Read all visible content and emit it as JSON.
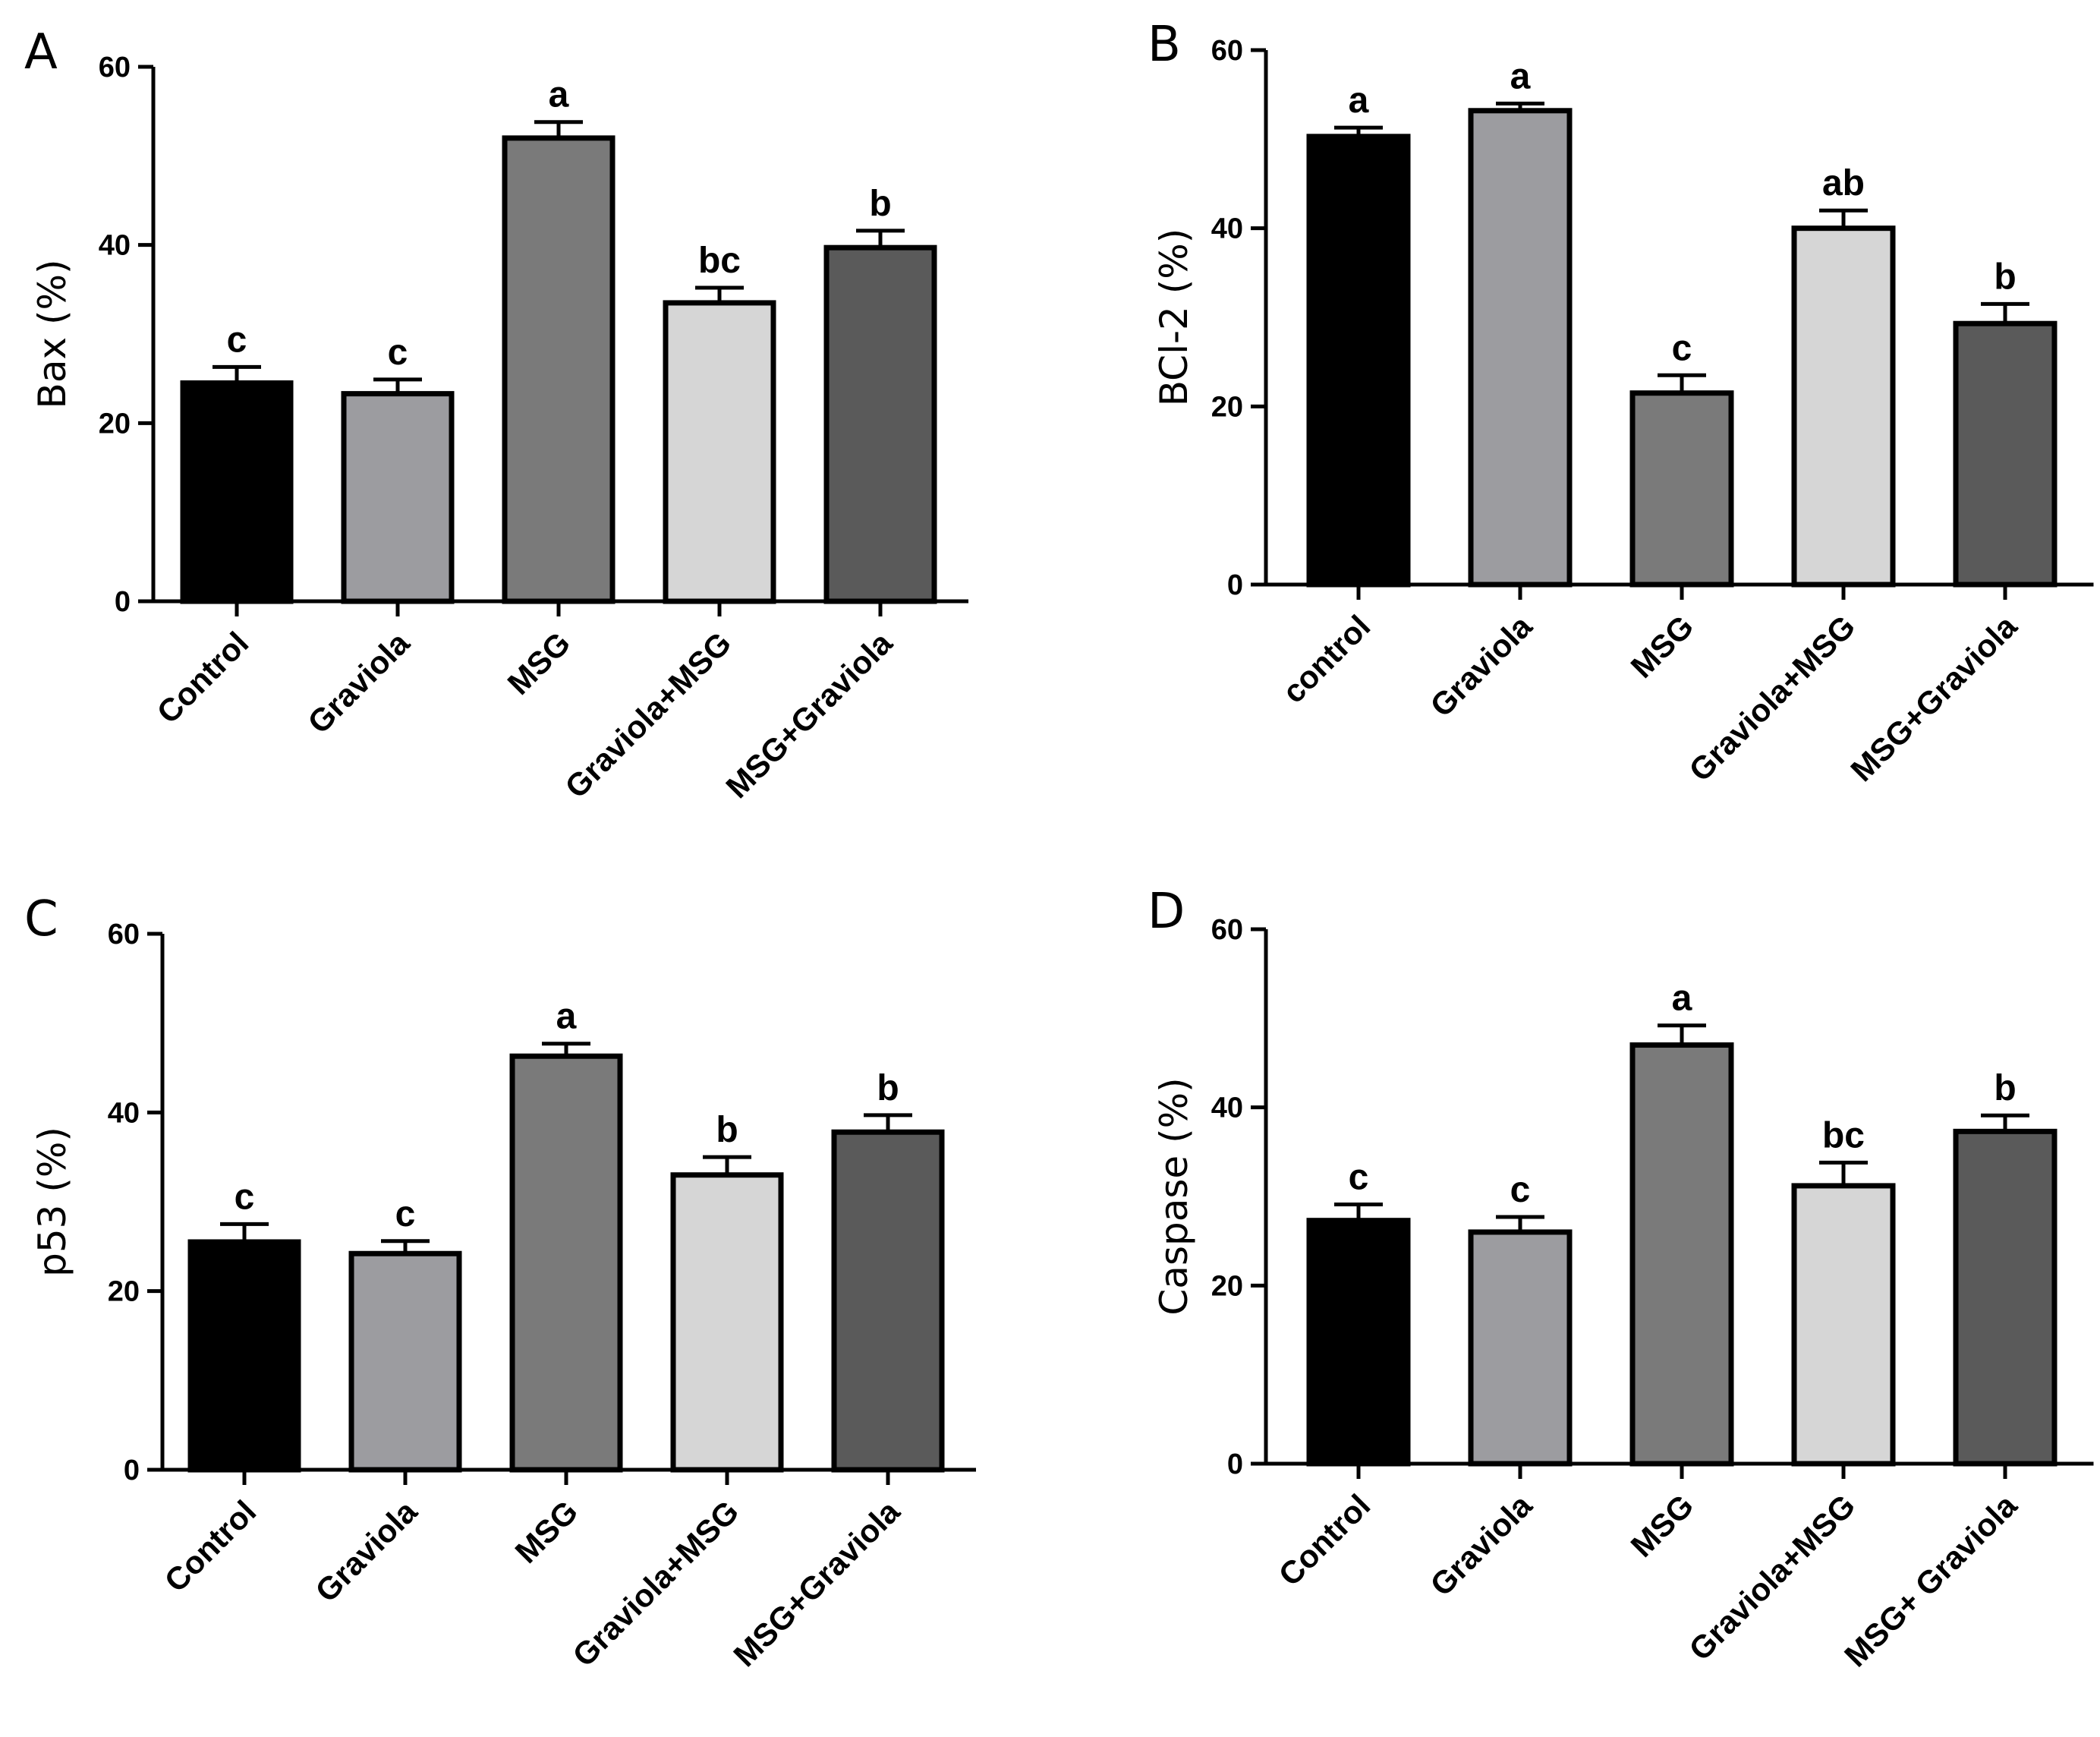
{
  "chart_data": [
    {
      "type": "bar",
      "panel": "A",
      "ylabel": "Bax (%)",
      "ylim": [
        0,
        60
      ],
      "yticks": [
        "0",
        "20",
        "40",
        "60"
      ],
      "categories": [
        "Control",
        "Graviola",
        "MSG",
        "Graviola+MSG",
        "MSG+Graviola"
      ],
      "values": [
        24.5,
        23.3,
        52,
        33.5,
        39.7
      ],
      "errors": [
        1.8,
        1.6,
        1.8,
        1.7,
        1.9
      ],
      "significance": [
        "c",
        "c",
        "a",
        "bc",
        "b"
      ],
      "colors": [
        "#000000",
        "#9c9ca0",
        "#7a7a7a",
        "#d6d6d6",
        "#5a5a5a"
      ]
    },
    {
      "type": "bar",
      "panel": "B",
      "ylabel": "BCl-2 (%)",
      "ylim": [
        0,
        60
      ],
      "yticks": [
        "0",
        "20",
        "40",
        "60"
      ],
      "categories": [
        "control",
        "Graviola",
        "MSG",
        "Graviola+MSG",
        "MSG+Graviola"
      ],
      "values": [
        50.3,
        53.2,
        21.5,
        40,
        29.3
      ],
      "errors": [
        1.0,
        0.8,
        2.0,
        2.0,
        2.2
      ],
      "significance": [
        "a",
        "a",
        "c",
        "ab",
        "b"
      ],
      "colors": [
        "#000000",
        "#9c9ca0",
        "#7a7a7a",
        "#d6d6d6",
        "#5a5a5a"
      ]
    },
    {
      "type": "bar",
      "panel": "C",
      "ylabel": "p53 (%)",
      "ylim": [
        0,
        60
      ],
      "yticks": [
        "0",
        "20",
        "40",
        "60"
      ],
      "categories": [
        "Control",
        "Graviola",
        "MSG",
        "Graviola+MSG",
        "MSG+Graviola"
      ],
      "values": [
        25.5,
        24.2,
        46.3,
        33,
        37.8
      ],
      "errors": [
        2.0,
        1.4,
        1.4,
        2.0,
        1.9
      ],
      "significance": [
        "c",
        "c",
        "a",
        "b",
        "b"
      ],
      "colors": [
        "#000000",
        "#9c9ca0",
        "#7a7a7a",
        "#d6d6d6",
        "#5a5a5a"
      ]
    },
    {
      "type": "bar",
      "panel": "D",
      "ylabel": "Caspase (%)",
      "ylim": [
        0,
        60
      ],
      "yticks": [
        "0",
        "20",
        "40",
        "60"
      ],
      "categories": [
        "Control",
        "Graviola",
        "MSG",
        "Graviola+MSG",
        "MSG+ Graviola"
      ],
      "values": [
        27.3,
        26,
        47,
        31.2,
        37.3
      ],
      "errors": [
        1.8,
        1.7,
        2.2,
        2.6,
        1.8
      ],
      "significance": [
        "c",
        "c",
        "a",
        "bc",
        "b"
      ],
      "colors": [
        "#000000",
        "#9c9ca0",
        "#7a7a7a",
        "#d6d6d6",
        "#5a5a5a"
      ]
    }
  ]
}
